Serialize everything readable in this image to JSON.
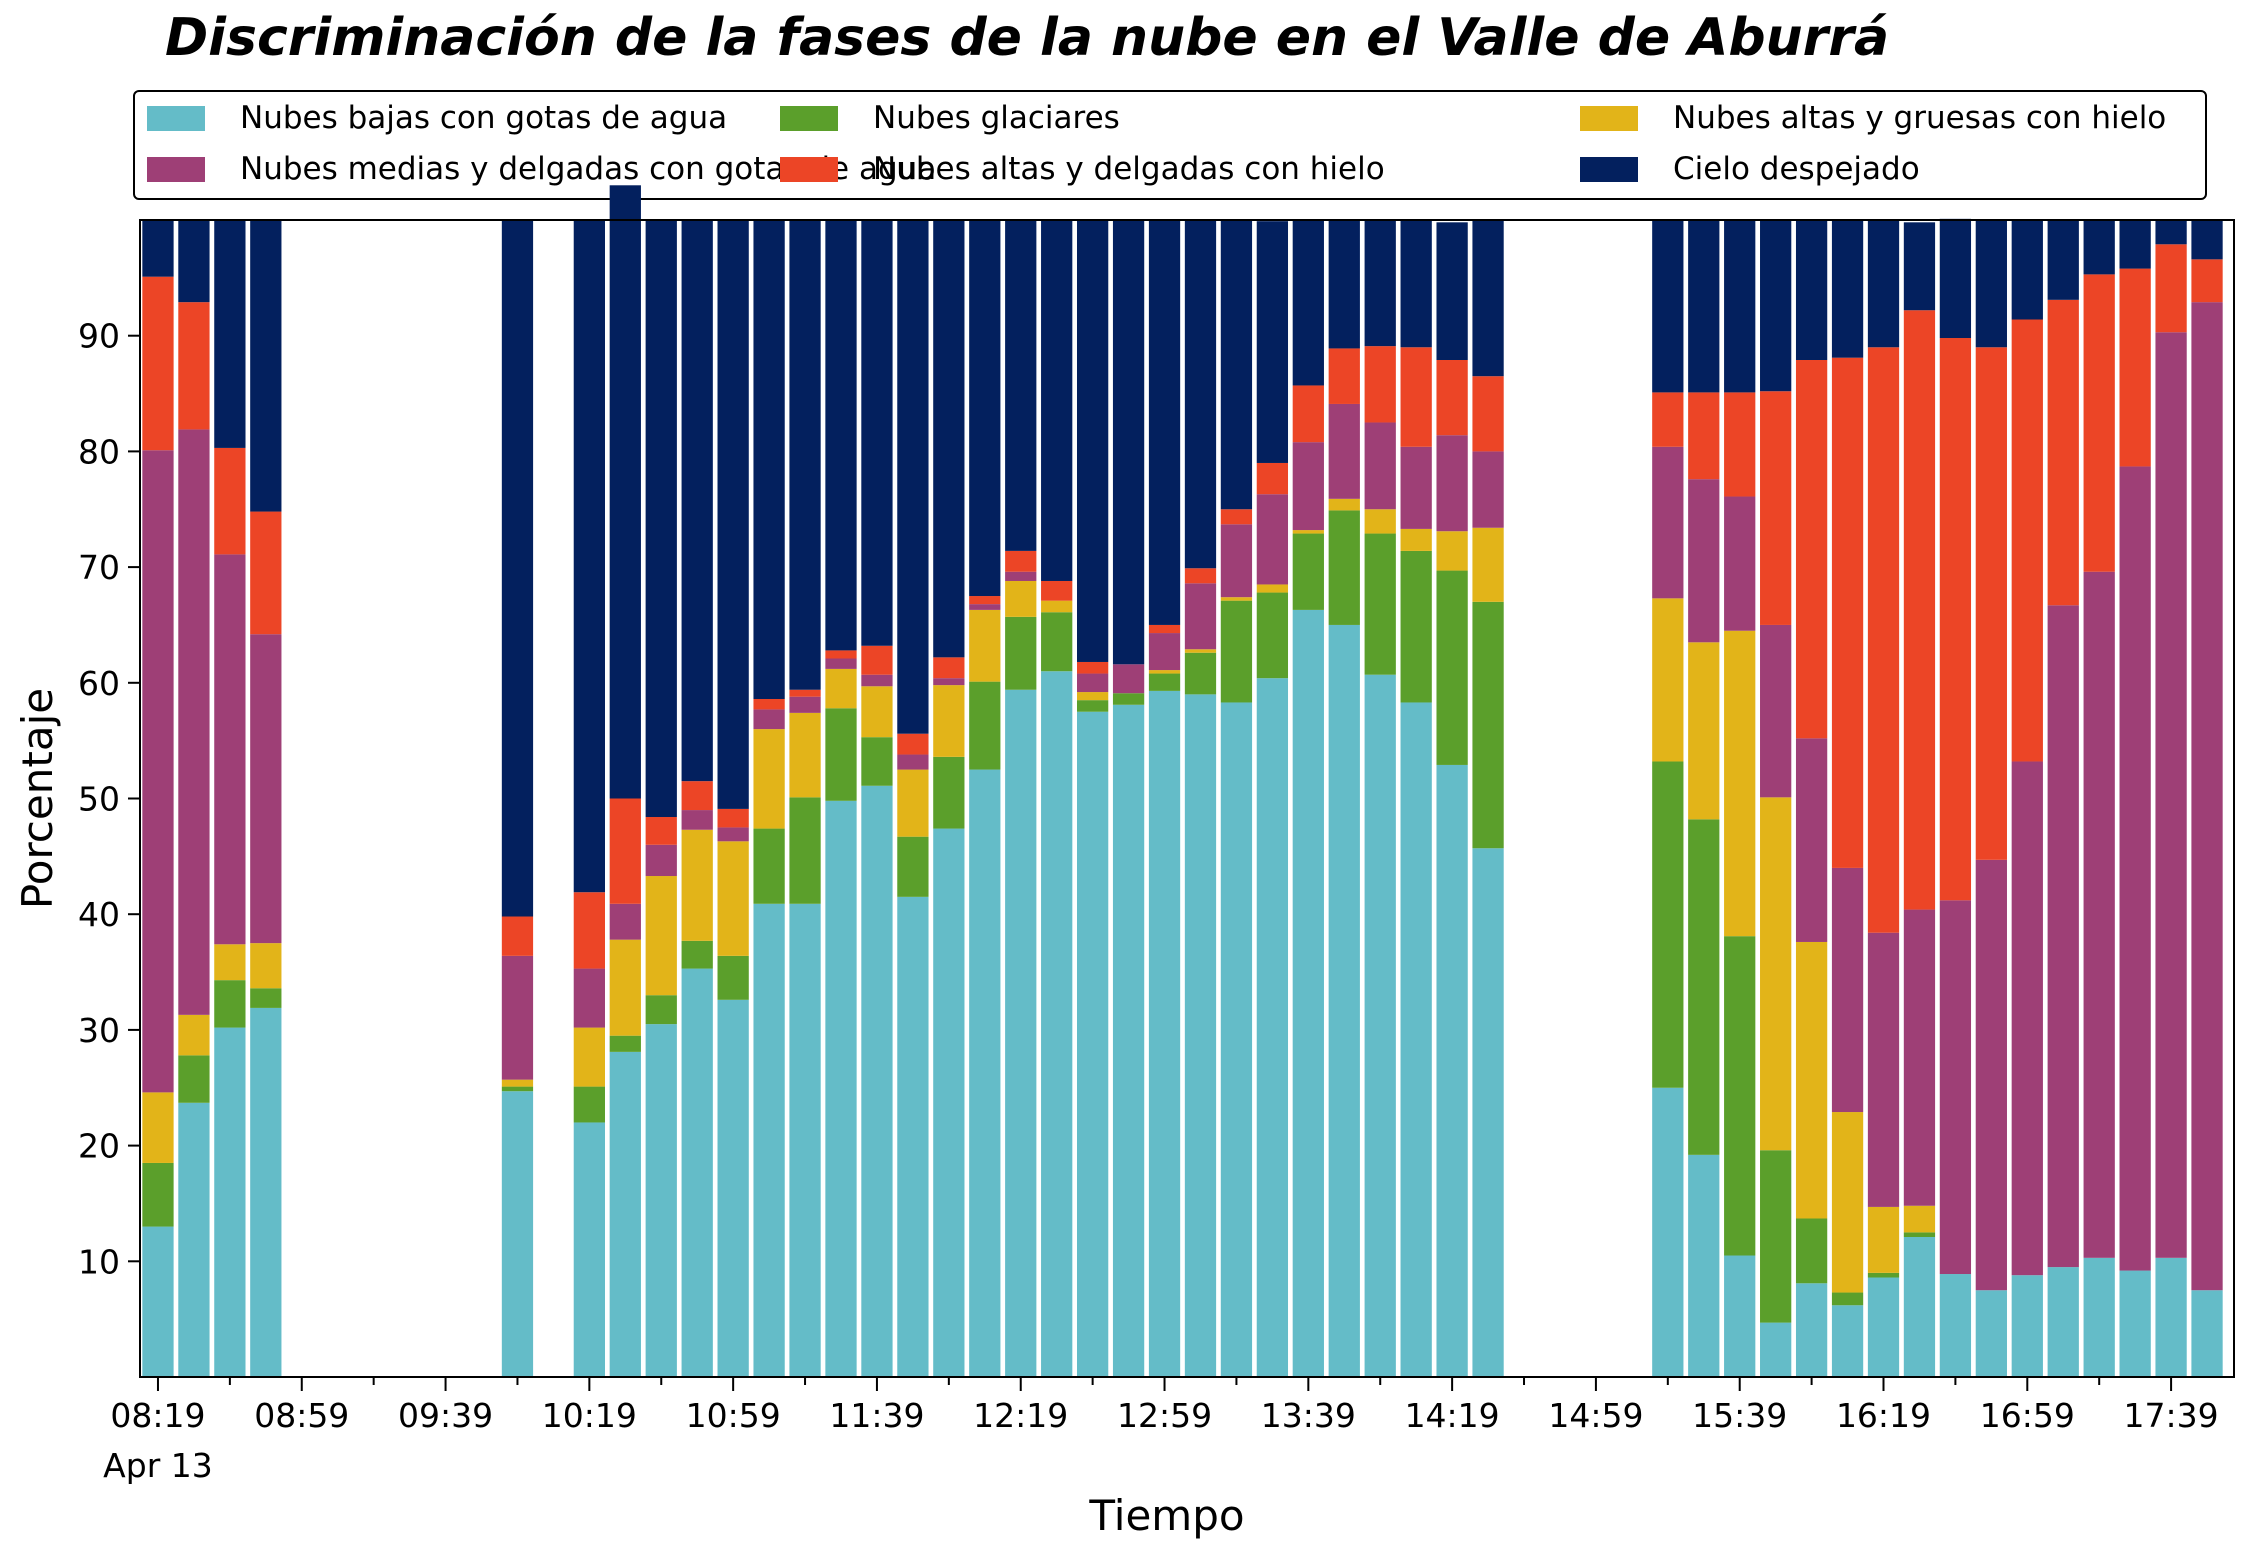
{
  "chart_data": {
    "type": "bar",
    "stacked": true,
    "title": "Discriminación de la fases de la nube en el Valle de Aburrá",
    "xlabel": "Tiempo",
    "ylabel": "Porcentaje",
    "ylim": [
      0,
      100
    ],
    "yticks": [
      10,
      20,
      30,
      40,
      50,
      60,
      70,
      80,
      90
    ],
    "x_start": "08:19",
    "x_interval_minutes": 10,
    "x_min_index": -0.5,
    "x_max_index": 57.75,
    "x_tick_labels": [
      "08:19",
      "08:59",
      "09:39",
      "10:19",
      "10:59",
      "11:39",
      "12:19",
      "12:59",
      "13:39",
      "14:19",
      "14:59",
      "15:39",
      "16:19",
      "16:59",
      "17:39"
    ],
    "x_tick_indices": [
      0,
      4,
      8,
      12,
      16,
      20,
      24,
      28,
      32,
      36,
      40,
      44,
      48,
      52,
      56
    ],
    "x_date_label": "Apr 13",
    "legend_position": "top",
    "grid": false,
    "categories": [
      "08:19",
      "08:29",
      "08:39",
      "08:49",
      "08:59",
      "09:09",
      "09:19",
      "09:29",
      "09:39",
      "09:49",
      "09:59",
      "10:09",
      "10:19",
      "10:29",
      "10:39",
      "10:49",
      "10:59",
      "11:09",
      "11:19",
      "11:29",
      "11:39",
      "11:49",
      "11:59",
      "12:09",
      "12:19",
      "12:29",
      "12:39",
      "12:49",
      "12:59",
      "13:09",
      "13:19",
      "13:29",
      "13:39",
      "13:49",
      "13:59",
      "14:09",
      "14:19",
      "14:29",
      "14:39",
      "14:49",
      "14:59",
      "15:09",
      "15:19",
      "15:29",
      "15:39",
      "15:49",
      "15:59",
      "16:09",
      "16:19",
      "16:29",
      "16:39",
      "16:49",
      "16:59",
      "17:09",
      "17:19",
      "17:29",
      "17:39",
      "17:49"
    ],
    "series": [
      {
        "name": "Nubes bajas con gotas de agua",
        "color": "#64BCC8",
        "values": [
          13,
          23.7,
          30.2,
          31.9,
          null,
          null,
          null,
          null,
          null,
          null,
          24.7,
          null,
          22,
          28.1,
          30.5,
          35.3,
          32.6,
          40.9,
          40.9,
          49.8,
          51.1,
          41.5,
          47.4,
          52.5,
          59.4,
          61,
          57.5,
          58.1,
          59.3,
          59,
          58.3,
          60.4,
          66.3,
          65,
          60.7,
          58.3,
          52.9,
          45.7,
          null,
          null,
          null,
          null,
          25,
          19.2,
          10.5,
          4.7,
          8.1,
          6.2,
          8.6,
          12.1,
          8.9,
          7.5,
          8.8,
          9.5,
          10.3,
          9.2,
          10.3,
          7.5
        ]
      },
      {
        "name": "Nubes glaciares",
        "color": "#5B9F2B",
        "values": [
          5.5,
          4.1,
          4.1,
          1.7,
          null,
          null,
          null,
          null,
          null,
          null,
          0.4,
          null,
          3.1,
          1.4,
          2.5,
          2.4,
          3.8,
          6.5,
          9.2,
          8,
          4.2,
          5.2,
          6.2,
          7.6,
          6.3,
          5.1,
          1,
          1,
          1.5,
          3.6,
          8.8,
          7.4,
          6.6,
          9.9,
          12.2,
          13.1,
          16.8,
          21.3,
          null,
          null,
          null,
          null,
          28.2,
          29,
          27.6,
          14.9,
          5.6,
          1.1,
          0.4,
          0.4,
          0,
          0,
          0,
          0,
          0,
          0,
          0,
          0
        ]
      },
      {
        "name": "Nubes altas y gruesas con hielo",
        "color": "#E2B419",
        "values": [
          6.1,
          3.5,
          3.1,
          3.9,
          null,
          null,
          null,
          null,
          null,
          null,
          0.6,
          null,
          5.1,
          8.3,
          10.3,
          9.6,
          9.9,
          8.6,
          7.3,
          3.4,
          4.4,
          5.8,
          6.2,
          6.2,
          3.1,
          1,
          0.7,
          0,
          0.3,
          0.3,
          0.3,
          0.7,
          0.3,
          1,
          2.1,
          1.9,
          3.4,
          6.4,
          null,
          null,
          null,
          null,
          14.1,
          15.3,
          26.4,
          30.5,
          23.9,
          15.6,
          5.7,
          2.3,
          0,
          0,
          0,
          0,
          0,
          0,
          0,
          0
        ]
      },
      {
        "name": "Nubes medias y delgadas con gotas de agua",
        "color": "#9E3F76",
        "values": [
          55.5,
          50.6,
          33.7,
          26.7,
          null,
          null,
          null,
          null,
          null,
          null,
          10.7,
          null,
          5.1,
          3.1,
          2.7,
          1.7,
          1.2,
          1.7,
          1.4,
          0.9,
          1,
          1.3,
          0.6,
          0.5,
          0.8,
          0,
          1.6,
          2.5,
          3.2,
          5.7,
          6.3,
          7.8,
          7.6,
          8.2,
          7.5,
          7.1,
          8.3,
          6.6,
          null,
          null,
          null,
          null,
          13.1,
          14.1,
          11.6,
          14.9,
          17.6,
          21.1,
          23.7,
          25.6,
          32.3,
          37.2,
          44.4,
          57.2,
          59.3,
          69.5,
          80,
          85.4
        ]
      },
      {
        "name": "Nubes altas y delgadas con hielo",
        "color": "#EC4526",
        "values": [
          15,
          11,
          9.2,
          10.6,
          null,
          null,
          null,
          null,
          null,
          null,
          3.4,
          null,
          6.6,
          9.1,
          2.4,
          2.5,
          1.6,
          0.9,
          0.6,
          0.7,
          2.5,
          1.8,
          1.8,
          0.7,
          1.8,
          1.7,
          1,
          0,
          0.7,
          1.3,
          1.3,
          2.7,
          4.9,
          4.8,
          6.6,
          8.6,
          6.5,
          6.5,
          null,
          null,
          null,
          null,
          4.7,
          7.5,
          9,
          20.2,
          32.7,
          44.1,
          50.6,
          51.8,
          48.6,
          44.3,
          38.2,
          26.4,
          25.7,
          17.1,
          7.6,
          3.7
        ]
      },
      {
        "name": "Cielo despejado",
        "color": "#03205E",
        "values": [
          4.9,
          7.1,
          19.7,
          25.2,
          null,
          null,
          null,
          null,
          null,
          null,
          60.2,
          null,
          58.1,
          53,
          51.6,
          48.5,
          50.9,
          41.4,
          40.6,
          37.2,
          36.8,
          44.4,
          37.8,
          32.5,
          28.6,
          31.2,
          38.2,
          38.4,
          35,
          30.1,
          25,
          20.9,
          14.3,
          11.1,
          10.9,
          11,
          11.9,
          13.5,
          null,
          null,
          null,
          null,
          14.9,
          14.9,
          14.9,
          14.8,
          12.1,
          11.9,
          11,
          7.6,
          10.3,
          11,
          8.6,
          6.9,
          4.7,
          4.2,
          2.1,
          3.4
        ]
      }
    ]
  }
}
